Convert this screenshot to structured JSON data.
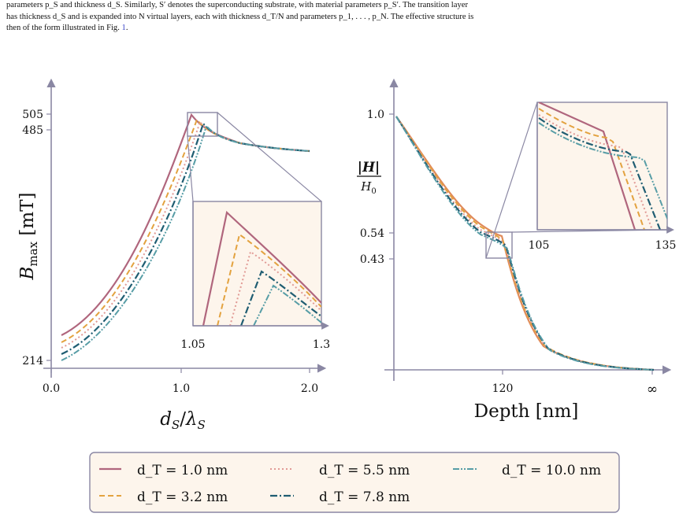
{
  "intro_text": {
    "line1": "parameters p_S and thickness d_S. Similarly, S′ denotes the superconducting substrate, with material parameters p_S′. The transition layer",
    "line2": "has thickness d_S and is expanded into N virtual layers, each with thickness d_T/N and parameters p_1, . . . , p_N. The effective structure is",
    "line3_before": "then of the form illustrated in Fig. ",
    "line3_ref": "1",
    "line3_after": "."
  },
  "colors": {
    "axis": "#8a87a3",
    "inset_bg": "#fdf5ec",
    "series": [
      "#b0667d",
      "#e3a23f",
      "#e19a95",
      "#1f5d72",
      "#579da6"
    ]
  },
  "legend": {
    "entries": [
      "d_T = 1.0 nm",
      "d_T = 3.2 nm",
      "d_T = 5.5 nm",
      "d_T = 7.8 nm",
      "d_T = 10.0 nm"
    ],
    "dash_styles": [
      "solid",
      "dashed",
      "dotted",
      "dashdot",
      "dashdotdot"
    ]
  },
  "chart_data": [
    {
      "type": "line",
      "xlabel": "d_S/λ_S",
      "ylabel": "B_max [mT]",
      "xticks": [
        "0.0",
        "1.0",
        "2.0"
      ],
      "yticks": [
        "214",
        "485",
        "505"
      ],
      "xlim": [
        -0.1,
        2.1
      ],
      "ylim": [
        200,
        515
      ],
      "series": [
        {
          "name": "d_T = 1.0 nm",
          "x": [
            0.05,
            0.3,
            0.6,
            0.8,
            1.0,
            1.08,
            1.2,
            1.5,
            2.0
          ],
          "y": [
            252,
            275,
            330,
            385,
            465,
            504,
            482,
            458,
            443
          ]
        },
        {
          "name": "d_T = 3.2 nm",
          "x": [
            0.05,
            0.3,
            0.6,
            0.8,
            1.0,
            1.12,
            1.2,
            1.5,
            2.0
          ],
          "y": [
            243,
            265,
            318,
            370,
            445,
            493,
            484,
            458,
            443
          ]
        },
        {
          "name": "d_T = 5.5 nm",
          "x": [
            0.05,
            0.3,
            0.6,
            0.8,
            1.0,
            1.16,
            1.25,
            1.5,
            2.0
          ],
          "y": [
            235,
            257,
            307,
            357,
            430,
            484,
            478,
            458,
            443
          ]
        },
        {
          "name": "d_T = 7.8 nm",
          "x": [
            0.05,
            0.3,
            0.6,
            0.8,
            1.0,
            1.19,
            1.3,
            1.5,
            2.0
          ],
          "y": [
            225,
            248,
            296,
            344,
            415,
            479,
            472,
            458,
            443
          ]
        },
        {
          "name": "d_T = 10.0 nm",
          "x": [
            0.05,
            0.3,
            0.6,
            0.8,
            1.0,
            1.22,
            1.3,
            1.5,
            2.0
          ],
          "y": [
            217,
            240,
            286,
            333,
            403,
            475,
            469,
            457,
            443
          ]
        }
      ],
      "inset": {
        "xticks": [
          "1.05",
          "1.3"
        ],
        "xlim": [
          1.05,
          1.3
        ]
      }
    },
    {
      "type": "line",
      "xlabel": "Depth [nm]",
      "ylabel": "|H|/H_0",
      "xticks": [
        "120",
        "∞"
      ],
      "yticks": [
        "0.43",
        "0.54",
        "1.0"
      ],
      "series": [
        {
          "name": "d_T = 1.0 nm",
          "x": [
            0,
            20,
            40,
            60,
            80,
            100,
            115,
            120,
            130,
            150,
            180,
            220,
            280
          ],
          "y": [
            1.0,
            0.87,
            0.77,
            0.69,
            0.63,
            0.58,
            0.55,
            0.54,
            0.35,
            0.22,
            0.12,
            0.06,
            0.02
          ]
        },
        {
          "name": "d_T = 3.2 nm",
          "x": [
            0,
            20,
            40,
            60,
            80,
            100,
            115,
            121,
            131,
            150,
            180,
            220,
            280
          ],
          "y": [
            1.0,
            0.87,
            0.77,
            0.69,
            0.63,
            0.58,
            0.545,
            0.53,
            0.38,
            0.24,
            0.13,
            0.06,
            0.02
          ]
        },
        {
          "name": "d_T = 5.5 nm",
          "x": [
            0,
            20,
            40,
            60,
            80,
            100,
            115,
            122,
            132,
            150,
            180,
            220,
            280
          ],
          "y": [
            1.0,
            0.87,
            0.77,
            0.69,
            0.62,
            0.575,
            0.54,
            0.52,
            0.4,
            0.25,
            0.13,
            0.06,
            0.02
          ]
        },
        {
          "name": "d_T = 7.8 nm",
          "x": [
            0,
            20,
            40,
            60,
            80,
            100,
            115,
            123,
            133,
            150,
            180,
            220,
            280
          ],
          "y": [
            1.0,
            0.87,
            0.77,
            0.69,
            0.62,
            0.57,
            0.535,
            0.51,
            0.42,
            0.26,
            0.14,
            0.06,
            0.02
          ]
        },
        {
          "name": "d_T = 10.0 nm",
          "x": [
            0,
            20,
            40,
            60,
            80,
            100,
            115,
            124,
            134,
            150,
            180,
            220,
            280
          ],
          "y": [
            1.0,
            0.87,
            0.77,
            0.69,
            0.62,
            0.57,
            0.53,
            0.5,
            0.43,
            0.27,
            0.14,
            0.06,
            0.02
          ]
        }
      ],
      "inset": {
        "xticks": [
          "105",
          "135"
        ],
        "xlim": [
          105,
          135
        ]
      }
    }
  ]
}
